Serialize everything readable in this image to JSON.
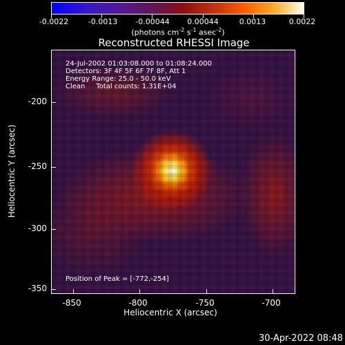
{
  "colorbar": {
    "ticks": [
      "-0.0022",
      "-0.0013",
      "-0.00044",
      "0.00044",
      "0.0013",
      "0.0022"
    ],
    "units": {
      "pre": "(photons cm",
      "e1": "-2",
      "mid1": " s",
      "e2": "-1",
      "mid2": " asec",
      "e3": "-2",
      "post": ")"
    },
    "colors": [
      "#0000ff",
      "#3818c8",
      "#56188e",
      "#651550",
      "#8a1010",
      "#c0300a",
      "#ff5a00",
      "#ffa820",
      "#fffff0"
    ]
  },
  "image": {
    "title": "Reconstructed RHESSI Image",
    "info": {
      "time": "24-Jul-2002 01:03:08.000 to 01:08:24.000",
      "detectors": "Detectors: 3F 4F 5F 6F 7F 8F, Att 1",
      "energy": "Energy Range: 25.0 - 50.0 keV",
      "clean": "Clean     Total counts: 1.31E+04"
    },
    "peak": "Position of Peak = [-772,-254]"
  },
  "x_axis": {
    "title": "Heliocentric X (arcsec)",
    "ticks": [
      "-850",
      "-800",
      "-750",
      "-700"
    ]
  },
  "y_axis": {
    "title": "Heliocentric Y (arcsec)",
    "ticks": [
      "-200",
      "-250",
      "-300",
      "-350"
    ]
  },
  "footer": {
    "timestamp": "30-Apr-2022 08:48"
  }
}
